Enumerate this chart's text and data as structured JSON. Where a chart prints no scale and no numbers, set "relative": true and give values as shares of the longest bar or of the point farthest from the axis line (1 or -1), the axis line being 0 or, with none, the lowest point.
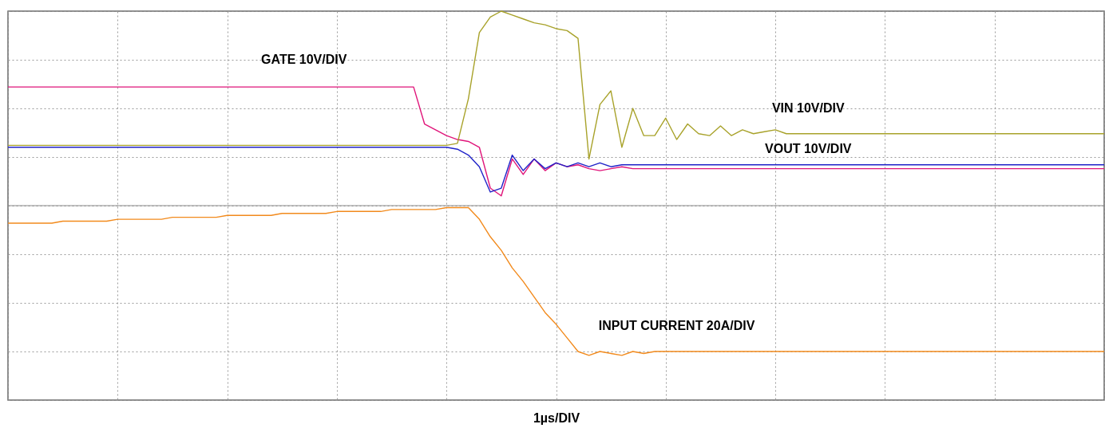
{
  "chart_data": {
    "type": "line",
    "relative": true,
    "grid": true,
    "xlabel": "1µs/DIV",
    "categories": [
      null,
      null,
      null,
      null,
      null,
      null,
      null,
      null,
      null,
      null,
      null,
      null,
      null,
      null,
      null,
      null,
      null,
      null,
      null,
      null,
      null,
      null,
      null,
      null,
      null,
      null,
      null,
      null,
      null,
      null,
      null,
      null,
      null,
      null,
      null,
      null,
      null,
      null,
      null,
      null,
      null,
      null,
      null,
      null,
      null,
      null,
      null,
      null,
      null,
      null,
      null,
      null,
      null,
      null,
      null,
      null,
      null,
      null,
      null,
      null,
      null,
      null,
      null,
      null,
      null,
      null,
      null,
      null,
      null,
      null,
      null,
      null,
      null,
      null,
      null,
      null,
      null,
      null,
      null,
      null,
      null,
      null,
      null,
      null,
      null,
      null,
      null,
      null,
      null,
      null,
      null,
      null,
      null,
      null,
      null,
      null,
      null,
      null,
      null,
      null,
      null
    ],
    "series": [
      {
        "name": "GATE 10V/DIV",
        "color": "#e0157a",
        "values": [
          0.61,
          0.61,
          0.61,
          0.61,
          0.61,
          0.61,
          0.61,
          0.61,
          0.61,
          0.61,
          0.61,
          0.61,
          0.61,
          0.61,
          0.61,
          0.61,
          0.61,
          0.61,
          0.61,
          0.61,
          0.61,
          0.61,
          0.61,
          0.61,
          0.61,
          0.61,
          0.61,
          0.61,
          0.61,
          0.61,
          0.61,
          0.61,
          0.61,
          0.61,
          0.61,
          0.61,
          0.61,
          0.61,
          0.42,
          0.39,
          0.36,
          0.34,
          0.33,
          0.3,
          0.09,
          0.05,
          0.24,
          0.16,
          0.24,
          0.18,
          0.22,
          0.2,
          0.21,
          0.19,
          0.18,
          0.19,
          0.2,
          0.19,
          0.19,
          0.19,
          0.19,
          0.19,
          0.19,
          0.19,
          0.19,
          0.19,
          0.19,
          0.19,
          0.19,
          0.19,
          0.19,
          0.19,
          0.19,
          0.19,
          0.19,
          0.19,
          0.19,
          0.19,
          0.19,
          0.19,
          0.19,
          0.19,
          0.19,
          0.19,
          0.19,
          0.19,
          0.19,
          0.19,
          0.19,
          0.19,
          0.19,
          0.19,
          0.19,
          0.19,
          0.19,
          0.19,
          0.19,
          0.19,
          0.19,
          0.19,
          0.19
        ]
      },
      {
        "name": "VIN 10V/DIV",
        "color": "#a8a22a",
        "values": [
          0.31,
          0.31,
          0.31,
          0.31,
          0.31,
          0.31,
          0.31,
          0.31,
          0.31,
          0.31,
          0.31,
          0.31,
          0.31,
          0.31,
          0.31,
          0.31,
          0.31,
          0.31,
          0.31,
          0.31,
          0.31,
          0.31,
          0.31,
          0.31,
          0.31,
          0.31,
          0.31,
          0.31,
          0.31,
          0.31,
          0.31,
          0.31,
          0.31,
          0.31,
          0.31,
          0.31,
          0.31,
          0.31,
          0.31,
          0.31,
          0.31,
          0.32,
          0.55,
          0.89,
          0.97,
          1.0,
          0.98,
          0.96,
          0.94,
          0.93,
          0.91,
          0.9,
          0.86,
          0.24,
          0.52,
          0.59,
          0.3,
          0.5,
          0.36,
          0.36,
          0.45,
          0.34,
          0.42,
          0.37,
          0.36,
          0.41,
          0.36,
          0.39,
          0.37,
          0.38,
          0.39,
          0.37,
          0.37,
          0.37,
          0.37,
          0.37,
          0.37,
          0.37,
          0.37,
          0.37,
          0.37,
          0.37,
          0.37,
          0.37,
          0.37,
          0.37,
          0.37,
          0.37,
          0.37,
          0.37,
          0.37,
          0.37,
          0.37,
          0.37,
          0.37,
          0.37,
          0.37,
          0.37,
          0.37,
          0.37,
          0.37
        ]
      },
      {
        "name": "VOUT 10V/DIV",
        "color": "#1f22c8",
        "values": [
          0.3,
          0.3,
          0.3,
          0.3,
          0.3,
          0.3,
          0.3,
          0.3,
          0.3,
          0.3,
          0.3,
          0.3,
          0.3,
          0.3,
          0.3,
          0.3,
          0.3,
          0.3,
          0.3,
          0.3,
          0.3,
          0.3,
          0.3,
          0.3,
          0.3,
          0.3,
          0.3,
          0.3,
          0.3,
          0.3,
          0.3,
          0.3,
          0.3,
          0.3,
          0.3,
          0.3,
          0.3,
          0.3,
          0.3,
          0.3,
          0.3,
          0.29,
          0.26,
          0.2,
          0.07,
          0.09,
          0.26,
          0.18,
          0.24,
          0.19,
          0.22,
          0.2,
          0.22,
          0.2,
          0.22,
          0.2,
          0.21,
          0.21,
          0.21,
          0.21,
          0.21,
          0.21,
          0.21,
          0.21,
          0.21,
          0.21,
          0.21,
          0.21,
          0.21,
          0.21,
          0.21,
          0.21,
          0.21,
          0.21,
          0.21,
          0.21,
          0.21,
          0.21,
          0.21,
          0.21,
          0.21,
          0.21,
          0.21,
          0.21,
          0.21,
          0.21,
          0.21,
          0.21,
          0.21,
          0.21,
          0.21,
          0.21,
          0.21,
          0.21,
          0.21,
          0.21,
          0.21,
          0.21,
          0.21,
          0.21,
          0.21
        ]
      },
      {
        "name": "INPUT CURRENT 20A/DIV",
        "color": "#f28a1c",
        "values": [
          -0.09,
          -0.09,
          -0.09,
          -0.09,
          -0.09,
          -0.08,
          -0.08,
          -0.08,
          -0.08,
          -0.08,
          -0.07,
          -0.07,
          -0.07,
          -0.07,
          -0.07,
          -0.06,
          -0.06,
          -0.06,
          -0.06,
          -0.06,
          -0.05,
          -0.05,
          -0.05,
          -0.05,
          -0.05,
          -0.04,
          -0.04,
          -0.04,
          -0.04,
          -0.04,
          -0.03,
          -0.03,
          -0.03,
          -0.03,
          -0.03,
          -0.02,
          -0.02,
          -0.02,
          -0.02,
          -0.02,
          -0.01,
          -0.01,
          -0.01,
          -0.07,
          -0.16,
          -0.23,
          -0.32,
          -0.39,
          -0.47,
          -0.55,
          -0.61,
          -0.68,
          -0.75,
          -0.77,
          -0.75,
          -0.76,
          -0.77,
          -0.75,
          -0.76,
          -0.75,
          -0.75,
          -0.75,
          -0.75,
          -0.75,
          -0.75,
          -0.75,
          -0.75,
          -0.75,
          -0.75,
          -0.75,
          -0.75,
          -0.75,
          -0.75,
          -0.75,
          -0.75,
          -0.75,
          -0.75,
          -0.75,
          -0.75,
          -0.75,
          -0.75,
          -0.75,
          -0.75,
          -0.75,
          -0.75,
          -0.75,
          -0.75,
          -0.75,
          -0.75,
          -0.75,
          -0.75,
          -0.75,
          -0.75,
          -0.75,
          -0.75,
          -0.75,
          -0.75,
          -0.75,
          -0.75,
          -0.75,
          -0.75
        ]
      }
    ]
  }
}
